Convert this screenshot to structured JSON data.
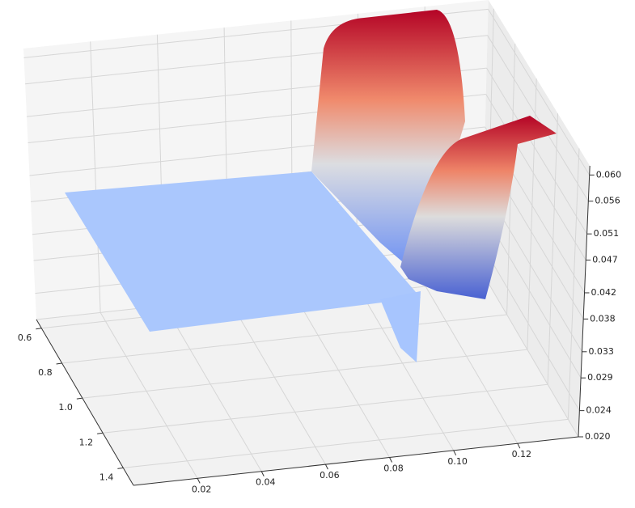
{
  "chart_data": {
    "type": "surface",
    "xlim": [
      0,
      0.139
    ],
    "xticks": [
      0.02,
      0.04,
      0.06,
      0.08,
      {
        "value": 0.1,
        "label": "0.10"
      },
      0.12
    ],
    "ylim": [
      0.55,
      1.5
    ],
    "yticks": [
      0.6,
      0.8,
      {
        "value": 1.0,
        "label": "1.0"
      },
      1.2,
      1.4
    ],
    "zlim": [
      0.02,
      0.0614
    ],
    "zticks": [
      {
        "value": 0.02,
        "label": "0.020"
      },
      0.024,
      0.029,
      0.033,
      0.038,
      0.042,
      0.047,
      0.051,
      0.056,
      {
        "value": 0.06,
        "label": "0.060"
      }
    ],
    "grid": true
  }
}
